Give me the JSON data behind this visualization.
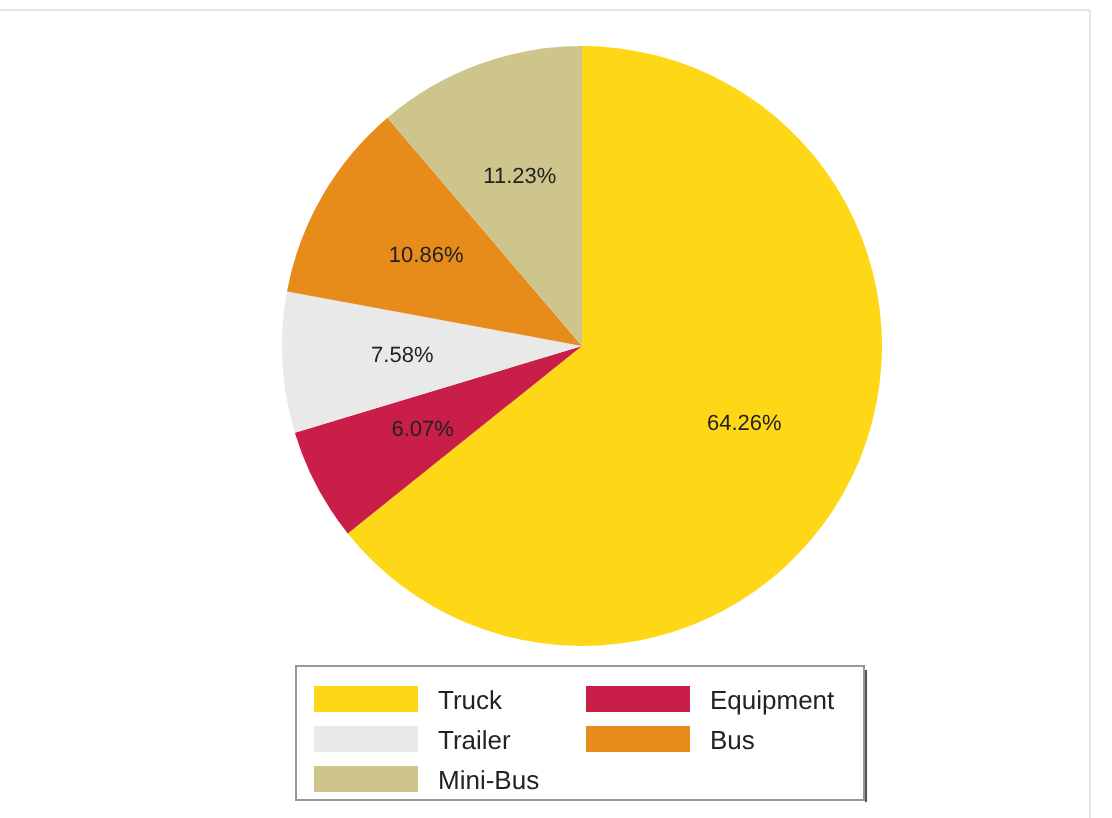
{
  "chart_data": {
    "type": "pie",
    "categories": [
      "Truck",
      "Equipment",
      "Trailer",
      "Bus",
      "Mini-Bus"
    ],
    "values": [
      64.26,
      6.07,
      7.58,
      10.86,
      11.23
    ],
    "colors": [
      "#fed816",
      "#c81e48",
      "#e9e9e9",
      "#e78b1b",
      "#cdc58c"
    ],
    "value_labels": [
      "64.26%",
      "6.07%",
      "7.58%",
      "10.86%",
      "11.23%"
    ],
    "legend": "bottom"
  }
}
